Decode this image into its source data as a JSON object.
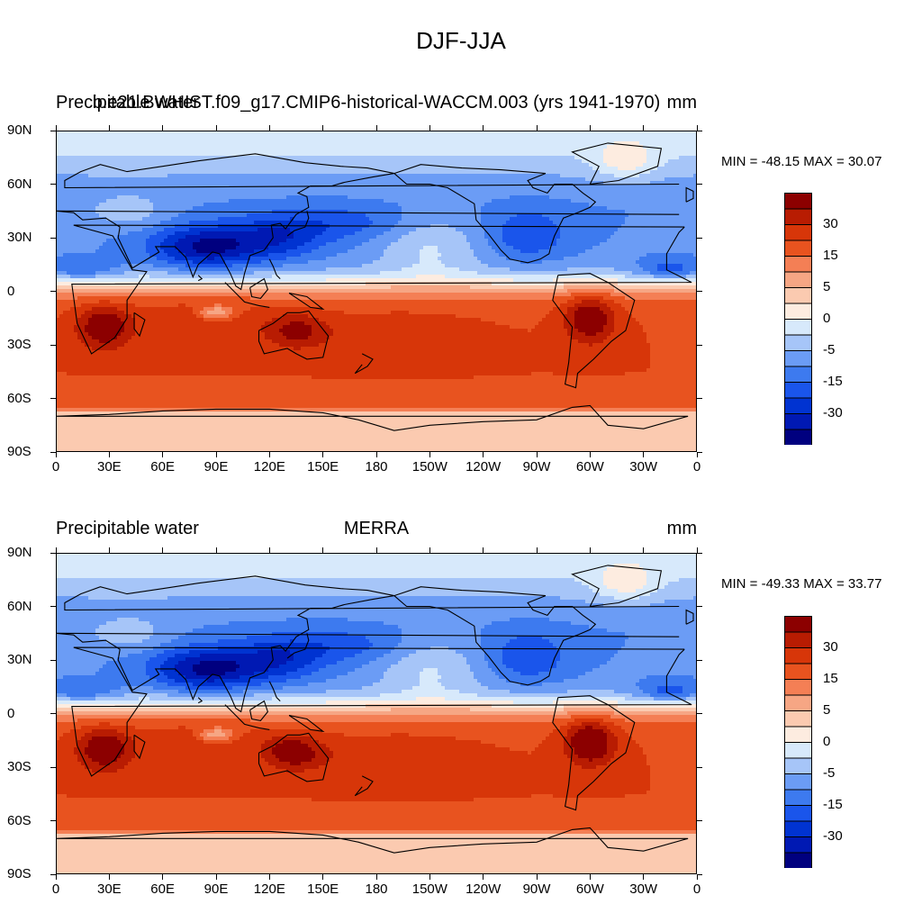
{
  "figure": {
    "title": "DJF-JJA",
    "colors": [
      "#00007f",
      "#0019b3",
      "#0033d1",
      "#1a55eb",
      "#3d7aef",
      "#6b9cf5",
      "#a6c5f8",
      "#d7e9fb",
      "#fdece0",
      "#fbcab0",
      "#f6a684",
      "#f47f55",
      "#e8531f",
      "#d73609",
      "#b81c02",
      "#8c0000"
    ],
    "colorbar_labels": [
      "30",
      "15",
      "5",
      "0",
      "-5",
      "-15",
      "-30"
    ],
    "panels": [
      {
        "left_title": "Precipitable water",
        "center_title": "b.e21.BWHIST.f09_g17.CMIP6-historical-WACCM.003 (yrs 1941-1970)",
        "right_title": "mm",
        "minmax": "MIN = -48.15 MAX =  30.07"
      },
      {
        "left_title": "Precipitable water",
        "center_title": "MERRA",
        "right_title": "mm",
        "minmax": "MIN = -49.33 MAX =  33.77"
      }
    ]
  },
  "chart_data": [
    {
      "type": "heatmap",
      "title": "b.e21.BWHIST.f09_g17.CMIP6-historical-WACCM.003 (yrs 1941-1970)",
      "variable": "Precipitable water",
      "units": "mm",
      "season_difference": "DJF-JJA",
      "x_tick_labels": [
        "0",
        "30E",
        "60E",
        "90E",
        "120E",
        "150E",
        "180",
        "150W",
        "120W",
        "90W",
        "60W",
        "30W",
        "0"
      ],
      "y_tick_labels": [
        "90N",
        "60N",
        "30N",
        "0",
        "30S",
        "60S",
        "90S"
      ],
      "xlim": [
        0,
        360
      ],
      "ylim": [
        -90,
        90
      ],
      "min": -48.15,
      "max": 30.07,
      "levels": [
        -40,
        -35,
        -30,
        -25,
        -20,
        -15,
        -10,
        -5,
        0,
        5,
        10,
        15,
        20,
        25,
        30
      ],
      "colorbar_labels": [
        "30",
        "15",
        "5",
        "0",
        "-5",
        "-15",
        "-30"
      ]
    },
    {
      "type": "heatmap",
      "title": "MERRA",
      "variable": "Precipitable water",
      "units": "mm",
      "season_difference": "DJF-JJA",
      "x_tick_labels": [
        "0",
        "30E",
        "60E",
        "90E",
        "120E",
        "150E",
        "180",
        "150W",
        "120W",
        "90W",
        "60W",
        "30W",
        "0"
      ],
      "y_tick_labels": [
        "90N",
        "60N",
        "30N",
        "0",
        "30S",
        "60S",
        "90S"
      ],
      "xlim": [
        0,
        360
      ],
      "ylim": [
        -90,
        90
      ],
      "min": -49.33,
      "max": 33.77,
      "levels": [
        -40,
        -35,
        -30,
        -25,
        -20,
        -15,
        -10,
        -5,
        0,
        5,
        10,
        15,
        20,
        25,
        30
      ],
      "colorbar_labels": [
        "30",
        "15",
        "5",
        "0",
        "-5",
        "-15",
        "-30"
      ]
    }
  ]
}
